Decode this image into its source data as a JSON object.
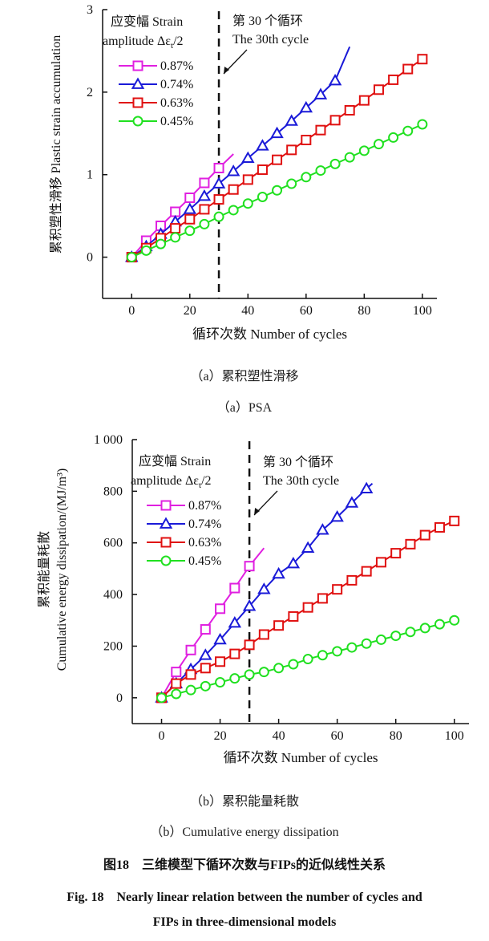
{
  "chart_data": [
    {
      "id": "psa",
      "type": "line",
      "ylabel_cn": "累积塑性滑移",
      "ylabel_en": "Plastic strain accumulation",
      "xlabel": "循环次数 Number of cycles",
      "xlim": [
        -10,
        105
      ],
      "ylim": [
        -0.5,
        3
      ],
      "xticks": [
        0,
        20,
        40,
        60,
        80,
        100
      ],
      "yticks": [
        0,
        1,
        2,
        3
      ],
      "ytick_labels": [
        "0",
        "1",
        "2",
        "3"
      ],
      "legend_title_1": "应变幅 Strain",
      "legend_title_2": "amplitude Δε",
      "legend_title_sub": "t",
      "legend_title_3": "/2",
      "annotation_1": "第 30 个循环",
      "annotation_2": "The 30th cycle",
      "cycle_marker": 30,
      "series": [
        {
          "name": "0.87%",
          "color": "#e020e0",
          "marker": "square-open",
          "points": [
            [
              0,
              0
            ],
            [
              5,
              0.2
            ],
            [
              10,
              0.38
            ],
            [
              15,
              0.55
            ],
            [
              20,
              0.72
            ],
            [
              25,
              0.9
            ],
            [
              30,
              1.08
            ]
          ],
          "line_end": [
            35,
            1.25
          ]
        },
        {
          "name": "0.74%",
          "color": "#1a1ad8",
          "marker": "triangle-open",
          "points": [
            [
              0,
              0
            ],
            [
              5,
              0.13
            ],
            [
              10,
              0.28
            ],
            [
              15,
              0.43
            ],
            [
              20,
              0.58
            ],
            [
              25,
              0.74
            ],
            [
              30,
              0.89
            ],
            [
              35,
              1.04
            ],
            [
              40,
              1.2
            ],
            [
              45,
              1.35
            ],
            [
              50,
              1.5
            ],
            [
              55,
              1.65
            ],
            [
              60,
              1.81
            ],
            [
              65,
              1.97
            ],
            [
              70,
              2.14
            ]
          ],
          "line_end": [
            75,
            2.55
          ]
        },
        {
          "name": "0.63%",
          "color": "#e01010",
          "marker": "square-open",
          "points": [
            [
              0,
              0
            ],
            [
              5,
              0.11
            ],
            [
              10,
              0.23
            ],
            [
              15,
              0.35
            ],
            [
              20,
              0.46
            ],
            [
              25,
              0.58
            ],
            [
              30,
              0.7
            ],
            [
              35,
              0.82
            ],
            [
              40,
              0.94
            ],
            [
              45,
              1.06
            ],
            [
              50,
              1.18
            ],
            [
              55,
              1.3
            ],
            [
              60,
              1.42
            ],
            [
              65,
              1.54
            ],
            [
              70,
              1.66
            ],
            [
              75,
              1.78
            ],
            [
              80,
              1.9
            ],
            [
              85,
              2.03
            ],
            [
              90,
              2.15
            ],
            [
              95,
              2.28
            ],
            [
              100,
              2.4
            ]
          ]
        },
        {
          "name": "0.45%",
          "color": "#20e020",
          "marker": "circle-open",
          "points": [
            [
              0,
              0
            ],
            [
              5,
              0.08
            ],
            [
              10,
              0.16
            ],
            [
              15,
              0.24
            ],
            [
              20,
              0.32
            ],
            [
              25,
              0.4
            ],
            [
              30,
              0.49
            ],
            [
              35,
              0.57
            ],
            [
              40,
              0.65
            ],
            [
              45,
              0.73
            ],
            [
              50,
              0.81
            ],
            [
              55,
              0.89
            ],
            [
              60,
              0.97
            ],
            [
              65,
              1.05
            ],
            [
              70,
              1.13
            ],
            [
              75,
              1.21
            ],
            [
              80,
              1.29
            ],
            [
              85,
              1.37
            ],
            [
              90,
              1.45
            ],
            [
              95,
              1.53
            ],
            [
              100,
              1.61
            ]
          ]
        }
      ]
    },
    {
      "id": "energy",
      "type": "line",
      "ylabel_cn": "累积能量耗散",
      "ylabel_en": "Cumulative energy dissipation/(MJ/m³)",
      "xlabel": "循环次数 Number of cycles",
      "xlim": [
        -10,
        105
      ],
      "ylim": [
        -100,
        1000
      ],
      "xticks": [
        0,
        20,
        40,
        60,
        80,
        100
      ],
      "yticks": [
        0,
        200,
        400,
        600,
        800,
        1000
      ],
      "ytick_labels": [
        "0",
        "200",
        "400",
        "600",
        "800",
        "1 000"
      ],
      "legend_title_1": "应变幅 Strain",
      "legend_title_2": "amplitude Δε",
      "legend_title_sub": "t",
      "legend_title_3": "/2",
      "annotation_1": "第 30 个循环",
      "annotation_2": "The 30th cycle",
      "cycle_marker": 30,
      "series": [
        {
          "name": "0.87%",
          "color": "#e020e0",
          "marker": "square-open",
          "points": [
            [
              0,
              0
            ],
            [
              5,
              100
            ],
            [
              10,
              185
            ],
            [
              15,
              265
            ],
            [
              20,
              345
            ],
            [
              25,
              425
            ],
            [
              30,
              510
            ]
          ],
          "line_end": [
            35,
            580
          ]
        },
        {
          "name": "0.74%",
          "color": "#1a1ad8",
          "marker": "triangle-open",
          "points": [
            [
              0,
              0
            ],
            [
              5,
              55
            ],
            [
              10,
              110
            ],
            [
              15,
              165
            ],
            [
              20,
              225
            ],
            [
              25,
              290
            ],
            [
              30,
              355
            ],
            [
              35,
              420
            ],
            [
              40,
              480
            ],
            [
              45,
              520
            ],
            [
              50,
              580
            ],
            [
              55,
              650
            ],
            [
              60,
              700
            ],
            [
              65,
              755
            ],
            [
              70,
              810
            ]
          ],
          "line_end": [
            72,
            830
          ]
        },
        {
          "name": "0.63%",
          "color": "#e01010",
          "marker": "square-open",
          "points": [
            [
              0,
              0
            ],
            [
              5,
              55
            ],
            [
              10,
              90
            ],
            [
              15,
              115
            ],
            [
              20,
              140
            ],
            [
              25,
              170
            ],
            [
              30,
              205
            ],
            [
              35,
              245
            ],
            [
              40,
              280
            ],
            [
              45,
              315
            ],
            [
              50,
              350
            ],
            [
              55,
              385
            ],
            [
              60,
              420
            ],
            [
              65,
              455
            ],
            [
              70,
              490
            ],
            [
              75,
              525
            ],
            [
              80,
              560
            ],
            [
              85,
              595
            ],
            [
              90,
              630
            ],
            [
              95,
              660
            ],
            [
              100,
              685
            ]
          ]
        },
        {
          "name": "0.45%",
          "color": "#20e020",
          "marker": "circle-open",
          "points": [
            [
              0,
              0
            ],
            [
              5,
              15
            ],
            [
              10,
              30
            ],
            [
              15,
              45
            ],
            [
              20,
              60
            ],
            [
              25,
              75
            ],
            [
              30,
              90
            ],
            [
              35,
              100
            ],
            [
              40,
              115
            ],
            [
              45,
              130
            ],
            [
              50,
              150
            ],
            [
              55,
              165
            ],
            [
              60,
              180
            ],
            [
              65,
              195
            ],
            [
              70,
              210
            ],
            [
              75,
              225
            ],
            [
              80,
              240
            ],
            [
              85,
              255
            ],
            [
              90,
              270
            ],
            [
              95,
              285
            ],
            [
              100,
              300
            ]
          ]
        }
      ]
    }
  ],
  "captions": {
    "a_cn": "（a）累积塑性滑移",
    "a_en": "（a）PSA",
    "b_cn": "（b）累积能量耗散",
    "b_en": "（b）Cumulative energy dissipation",
    "fig_cn": "图18　三维模型下循环次数与FIPs的近似线性关系",
    "fig_en_1": "Fig. 18　Nearly linear relation between the number of cycles and",
    "fig_en_2": "FIPs in three-dimensional models"
  }
}
